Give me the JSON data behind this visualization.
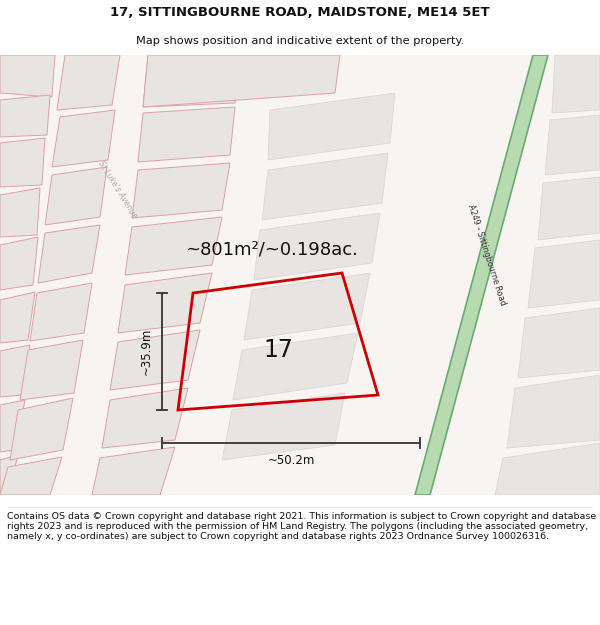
{
  "title_line1": "17, SITTINGBOURNE ROAD, MAIDSTONE, ME14 5ET",
  "title_line2": "Map shows position and indicative extent of the property.",
  "area_label": "~801m²/~0.198ac.",
  "property_number": "17",
  "dim_width": "~50.2m",
  "dim_height": "~35.9m",
  "copyright_text": "Contains OS data © Crown copyright and database right 2021. This information is subject to Crown copyright and database rights 2023 and is reproduced with the permission of HM Land Registry. The polygons (including the associated geometry, namely x, y co-ordinates) are subject to Crown copyright and database rights 2023 Ordnance Survey 100026316.",
  "map_bg": "#f7f4f2",
  "road_green_fill": "#b8dab0",
  "road_green_border": "#6aaa72",
  "block_fill": "#e8e4e2",
  "block_stroke": "#e0a0a0",
  "street_stroke": "#cccccc",
  "red_plot_color": "#cc0000",
  "dim_color": "#333333",
  "title_color": "#111111",
  "footer_color": "#111111",
  "st_lukes_color": "#aaaaaa",
  "road_label_color": "#333333"
}
